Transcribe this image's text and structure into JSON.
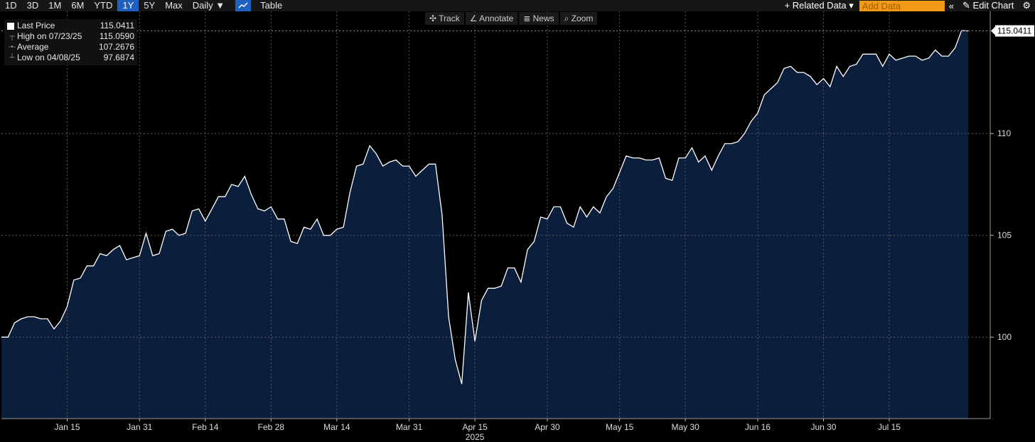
{
  "topbar": {
    "ranges": [
      "1D",
      "3D",
      "1M",
      "6M",
      "YTD",
      "1Y",
      "5Y",
      "Max"
    ],
    "active_range": "1Y",
    "interval": "Daily ▼",
    "table_label": "Table",
    "related_data": "+ Related Data ▾",
    "add_data_placeholder": "Add Data",
    "collapse_glyph": "«",
    "edit_chart": "✎ Edit Chart",
    "settings_glyph": "⚙"
  },
  "tools": [
    "✣ Track",
    "∠ Annotate",
    "≣ News",
    "⌕ Zoom"
  ],
  "legend": {
    "last_label": "Last Price",
    "last_value": "115.0411",
    "high_label": "High on 07/23/25",
    "high_value": "115.0590",
    "avg_label": "Average",
    "avg_value": "107.2676",
    "low_label": "Low on 04/08/25",
    "low_value": "97.6874"
  },
  "colors": {
    "fill": "#0b1f3d",
    "line": "#ffffff",
    "grid": "#5a5a5a",
    "accent": "#1f5fbf"
  },
  "chart_data": {
    "type": "area",
    "xlabel": "2025",
    "ylim": [
      96,
      116
    ],
    "yticks": [
      100,
      105,
      110
    ],
    "x_ticks": [
      {
        "label": "Jan 15",
        "i": 10
      },
      {
        "label": "Jan 31",
        "i": 21
      },
      {
        "label": "Feb 14",
        "i": 31
      },
      {
        "label": "Feb 28",
        "i": 41
      },
      {
        "label": "Mar 14",
        "i": 51
      },
      {
        "label": "Mar 31",
        "i": 62
      },
      {
        "label": "Apr 15",
        "i": 72
      },
      {
        "label": "Apr 30",
        "i": 83
      },
      {
        "label": "May 15",
        "i": 94
      },
      {
        "label": "May 30",
        "i": 104
      },
      {
        "label": "Jun 16",
        "i": 115
      },
      {
        "label": "Jun 30",
        "i": 125
      },
      {
        "label": "Jul 15",
        "i": 135
      }
    ],
    "last_price_label": "115.0411",
    "values": [
      100.0,
      100.0,
      100.7,
      100.9,
      101.0,
      101.0,
      100.9,
      100.9,
      100.4,
      100.8,
      101.5,
      102.8,
      102.9,
      103.5,
      103.5,
      104.1,
      104.0,
      104.3,
      104.5,
      103.8,
      103.9,
      104.0,
      105.1,
      104.0,
      104.1,
      105.2,
      105.3,
      105.0,
      105.1,
      106.2,
      106.3,
      105.7,
      106.3,
      106.9,
      106.9,
      107.5,
      107.4,
      107.9,
      107.0,
      106.3,
      106.2,
      106.4,
      105.8,
      105.8,
      104.7,
      104.6,
      105.4,
      105.3,
      105.8,
      105.0,
      105.0,
      105.3,
      105.4,
      107.1,
      108.4,
      108.5,
      109.4,
      109.0,
      108.4,
      108.6,
      108.7,
      108.4,
      108.4,
      107.9,
      108.2,
      108.5,
      108.5,
      106.0,
      101.0,
      98.9,
      97.7,
      102.2,
      99.8,
      101.8,
      102.4,
      102.4,
      102.5,
      103.4,
      103.4,
      102.7,
      104.3,
      104.7,
      105.9,
      105.8,
      106.4,
      106.4,
      105.6,
      105.4,
      106.4,
      105.9,
      106.4,
      106.1,
      106.9,
      107.3,
      108.1,
      108.9,
      108.8,
      108.8,
      108.7,
      108.7,
      108.8,
      107.8,
      107.7,
      108.8,
      108.8,
      109.3,
      108.6,
      108.9,
      108.2,
      108.9,
      109.5,
      109.5,
      109.6,
      110.0,
      110.6,
      111.0,
      111.9,
      112.2,
      112.5,
      113.2,
      113.3,
      113.0,
      113.0,
      112.8,
      112.4,
      112.7,
      112.3,
      113.3,
      112.8,
      113.3,
      113.4,
      113.9,
      113.9,
      113.9,
      113.3,
      113.9,
      113.6,
      113.7,
      113.8,
      113.8,
      113.6,
      113.7,
      114.1,
      113.8,
      113.8,
      114.2,
      115.06,
      115.04
    ]
  }
}
